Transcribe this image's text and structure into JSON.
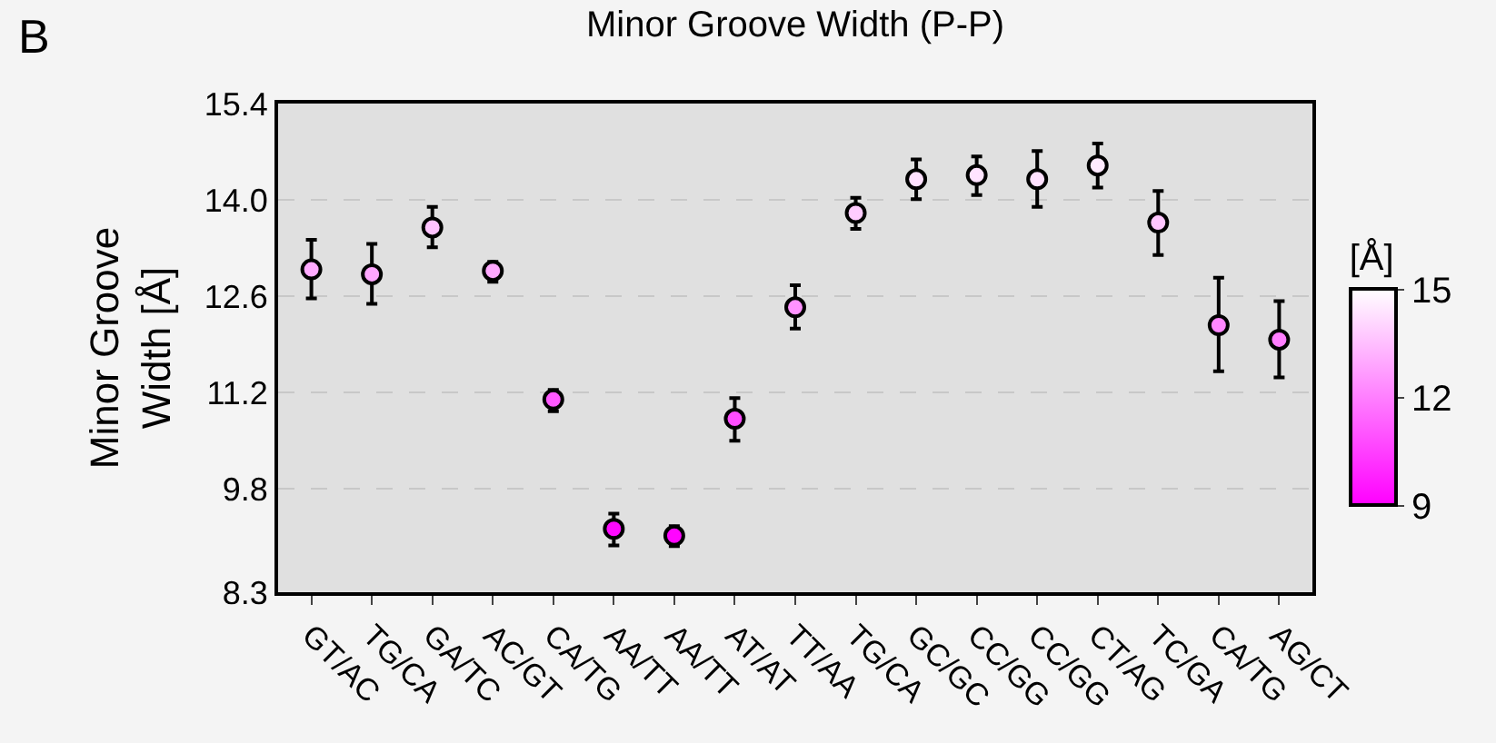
{
  "chart_data": {
    "type": "scatter",
    "title": "Minor Groove Width (P-P)",
    "ylabel": "Minor Groove\nWidth [Å]",
    "clabel": "[Å]",
    "annotations": [
      "B"
    ],
    "categories": [
      "GT/AC",
      "TG/CA",
      "GA/TC",
      "AC/GT",
      "CA/TG",
      "AA/TT",
      "AA/TT",
      "AT/AT",
      "TT/AA",
      "TG/CA",
      "GC/GC",
      "CC/GG",
      "CC/GG",
      "CT/AG",
      "TC/GA",
      "CA/TG",
      "AG/CT"
    ],
    "values": [
      12.99,
      12.92,
      13.6,
      12.97,
      11.1,
      9.22,
      9.12,
      10.82,
      12.44,
      13.81,
      14.3,
      14.36,
      14.3,
      14.5,
      13.67,
      12.18,
      11.97
    ],
    "cvalues": [
      12.99,
      12.92,
      13.6,
      12.97,
      11.1,
      9.22,
      9.12,
      10.82,
      12.44,
      13.81,
      14.3,
      14.36,
      14.3,
      14.5,
      13.67,
      12.18,
      11.97
    ],
    "errors": [
      [
        12.57,
        13.42
      ],
      [
        12.49,
        13.36
      ],
      [
        13.31,
        13.9
      ],
      [
        12.81,
        13.1
      ],
      [
        10.93,
        11.24
      ],
      [
        8.98,
        9.44
      ],
      [
        8.97,
        9.26
      ],
      [
        10.5,
        11.12
      ],
      [
        12.13,
        12.76
      ],
      [
        13.58,
        14.03
      ],
      [
        14.01,
        14.59
      ],
      [
        14.07,
        14.63
      ],
      [
        13.9,
        14.71
      ],
      [
        14.18,
        14.82
      ],
      [
        13.2,
        14.13
      ],
      [
        11.51,
        12.87
      ],
      [
        11.42,
        12.53
      ]
    ],
    "ylim": [
      8.3,
      15.4
    ],
    "yticks": [
      8.3,
      9.8,
      11.2,
      12.6,
      {
        "value": 14,
        "label": "14.0"
      },
      15.4
    ],
    "clim": [
      9,
      15
    ],
    "cticks": [
      9,
      12,
      15
    ],
    "grid": "y",
    "marker": "circle",
    "legend": false
  }
}
